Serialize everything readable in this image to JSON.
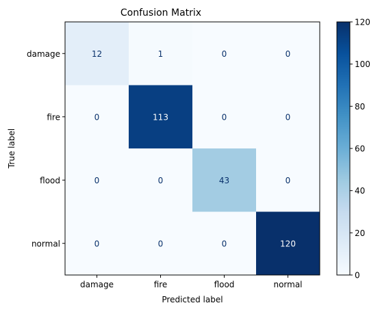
{
  "chart_data": {
    "type": "heatmap",
    "title": "Confusion Matrix",
    "xlabel": "Predicted label",
    "ylabel": "True label",
    "x_categories": [
      "damage",
      "fire",
      "flood",
      "normal"
    ],
    "y_categories": [
      "damage",
      "fire",
      "flood",
      "normal"
    ],
    "values": [
      [
        12,
        1,
        0,
        0
      ],
      [
        0,
        113,
        0,
        0
      ],
      [
        0,
        0,
        43,
        0
      ],
      [
        0,
        0,
        0,
        120
      ]
    ],
    "value_range": [
      0,
      120
    ],
    "colormap": "Blues",
    "colormap_start": "#f7fbff",
    "colormap_end": "#08306b",
    "colorbar_ticks": [
      "0",
      "20",
      "40",
      "60",
      "80",
      "100",
      "120"
    ],
    "text_color_light": "#ffffff",
    "text_color_dark": "#08306b"
  }
}
